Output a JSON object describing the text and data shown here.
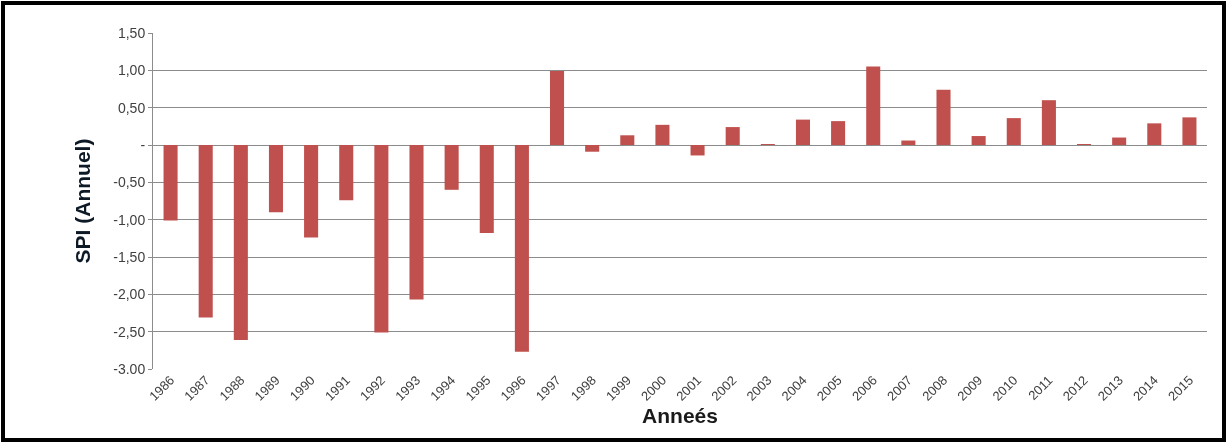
{
  "chart_data": {
    "type": "bar",
    "xlabel": "Anneés",
    "ylabel": "SPI (Annuel)",
    "categories": [
      "1986",
      "1987",
      "1988",
      "1989",
      "1990",
      "1991",
      "1992",
      "1993",
      "1994",
      "1995",
      "1996",
      "1997",
      "1998",
      "1999",
      "2000",
      "2001",
      "2002",
      "2003",
      "2004",
      "2005",
      "2006",
      "2007",
      "2008",
      "2009",
      "2010",
      "2011",
      "2012",
      "2013",
      "2014",
      "2015"
    ],
    "values": [
      -1.01,
      -2.31,
      -2.61,
      -0.9,
      -1.24,
      -0.74,
      -2.51,
      -2.07,
      -0.6,
      -1.18,
      -2.77,
      0.99,
      -0.09,
      0.13,
      0.27,
      -0.14,
      0.24,
      0.01,
      0.34,
      0.32,
      1.05,
      0.06,
      0.74,
      0.12,
      0.36,
      0.6,
      0.01,
      0.1,
      0.29,
      0.37
    ],
    "color": "#c0504d",
    "ylim": [
      -3,
      1.5
    ],
    "yticks": [
      {
        "value": 1.5,
        "label": "1,50"
      },
      {
        "value": 1,
        "label": "1,00"
      },
      {
        "value": 0.5,
        "label": "0,50"
      },
      {
        "value": 0,
        "label": "-"
      },
      {
        "value": -0.5,
        "label": "-0,50"
      },
      {
        "value": -1,
        "label": "-1,00"
      },
      {
        "value": -1.5,
        "label": "-1,50"
      },
      {
        "value": -2,
        "label": "-2,00"
      },
      {
        "value": -2.5,
        "label": "-2,50"
      },
      {
        "value": -3,
        "label": "-3.00"
      }
    ],
    "grid": "y"
  }
}
